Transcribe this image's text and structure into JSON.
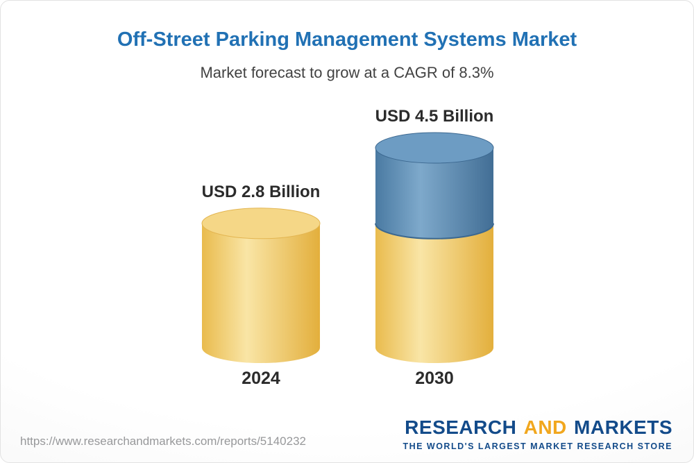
{
  "header": {
    "title": "Off-Street Parking Management Systems Market",
    "subtitle": "Market forecast to grow at a CAGR of 8.3%",
    "accent": "#2171b4"
  },
  "chart_data": {
    "type": "bar",
    "style": "3d-cylinder",
    "title": "Off-Street Parking Management Systems Market",
    "subtitle": "Market forecast to grow at a CAGR of 8.3%",
    "categories": [
      "2024",
      "2030"
    ],
    "values": [
      2.8,
      4.5
    ],
    "unit": "USD Billion",
    "bar_labels": [
      "USD 2.8 Billion",
      "USD 4.5 Billion"
    ],
    "cagr_percent": 8.3,
    "series": [
      {
        "name": "base-2024-level",
        "palette": "yellow",
        "values": [
          2.8,
          2.8
        ]
      },
      {
        "name": "growth-above-2024",
        "palette": "blue",
        "values": [
          0,
          1.7
        ]
      }
    ],
    "ylim": [
      0,
      5
    ],
    "grid": false,
    "legend": false,
    "label_color": "#2b2b2b",
    "axis_label_color": "#2b2b2b",
    "palettes": {
      "yellow": {
        "edge_left": "#e9bb4d",
        "highlight": "#f9e5a6",
        "edge_right": "#e3af3c",
        "top": "#f5d787",
        "rim": "#e3b551"
      },
      "blue": {
        "edge_left": "#4a7aa2",
        "highlight": "#7ea9cb",
        "edge_right": "#426e95",
        "top": "#6d9cc3",
        "rim": "#3c6890"
      }
    }
  },
  "footer": {
    "url": "https://www.researchandmarkets.com/reports/5140232",
    "logo": {
      "research": "RESEARCH",
      "and": "AND",
      "markets": "MARKETS",
      "tagline": "THE WORLD'S LARGEST MARKET RESEARCH STORE",
      "blue": "#134b8a",
      "gold": "#f1a71e"
    }
  }
}
